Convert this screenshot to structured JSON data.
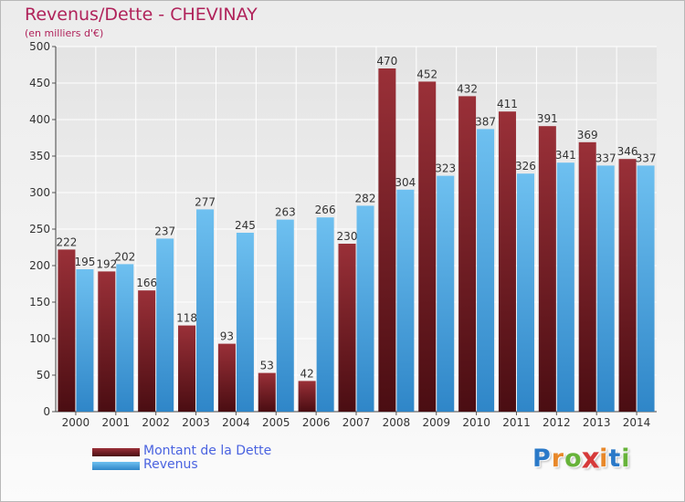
{
  "chart": {
    "title": "Revenus/Dette - CHEVINAY",
    "subtitle": "(en milliers d'€)"
  },
  "chart_data": {
    "type": "bar",
    "title": "Revenus/Dette - CHEVINAY",
    "subtitle": "(en milliers d'€)",
    "xlabel": "",
    "ylabel": "",
    "ylim": [
      0,
      500
    ],
    "yticks": [
      0,
      50,
      100,
      150,
      200,
      250,
      300,
      350,
      400,
      450,
      500
    ],
    "grid": true,
    "legend_position": "bottom-left",
    "categories": [
      "2000",
      "2001",
      "2002",
      "2003",
      "2004",
      "2005",
      "2006",
      "2007",
      "2008",
      "2009",
      "2010",
      "2011",
      "2012",
      "2013",
      "2014"
    ],
    "series": [
      {
        "name": "Montant de la Dette",
        "color": "#7b1a22",
        "values": [
          222,
          192,
          166,
          118,
          93,
          53,
          42,
          230,
          470,
          452,
          432,
          411,
          391,
          369,
          346
        ],
        "labels": [
          "222",
          "192",
          "166",
          "118",
          "93",
          "53",
          "42",
          "230",
          "470",
          "452",
          "432",
          "411",
          "391",
          "369",
          "346"
        ]
      },
      {
        "name": "Revenus",
        "color": "#3a9de0",
        "values": [
          195,
          202,
          237,
          277,
          245,
          263,
          266,
          282,
          304,
          323,
          387,
          326,
          341,
          337,
          337
        ],
        "labels": [
          "195",
          "202",
          "237",
          "277",
          "245",
          "263",
          "266",
          "282",
          "304",
          "323",
          "387",
          "326",
          "341",
          "337",
          "337"
        ]
      }
    ]
  },
  "legend": {
    "items": [
      {
        "label": "Montant de la Dette",
        "color": "#7b1a22"
      },
      {
        "label": "Revenus",
        "color": "#3a9de0"
      }
    ]
  },
  "brand": {
    "letters": [
      "P",
      "r",
      "o",
      "x",
      "i",
      "t",
      "i"
    ],
    "colors": [
      "#2a79c8",
      "#e8882a",
      "#67b33a",
      "#d63a3a",
      "#e8882a",
      "#2a79c8",
      "#67b33a"
    ]
  }
}
